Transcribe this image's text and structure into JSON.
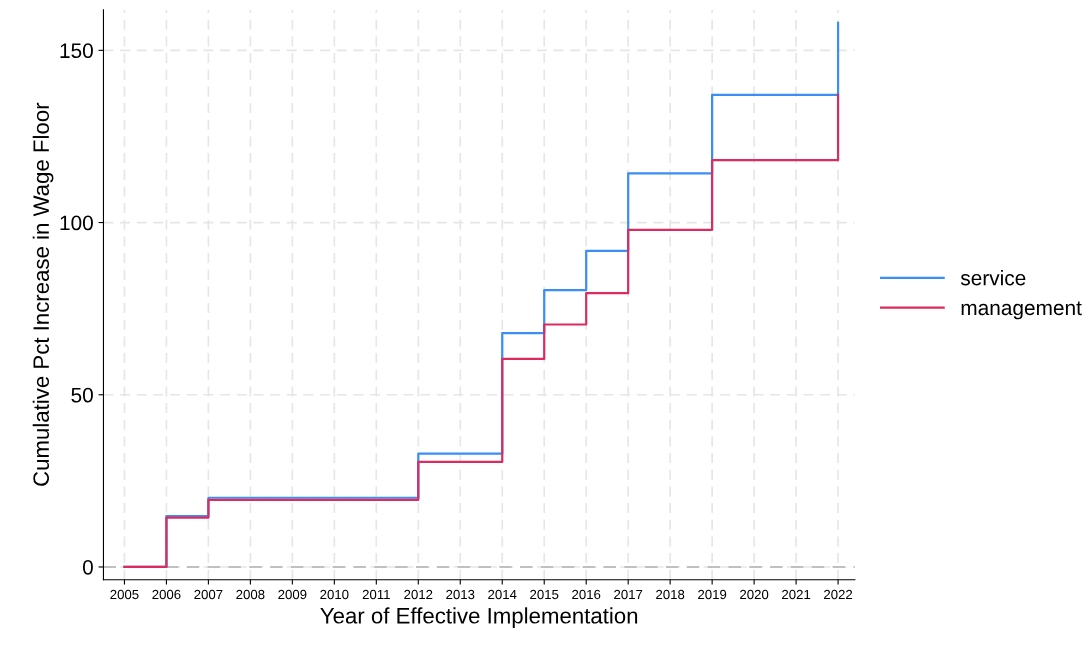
{
  "chart_data": {
    "type": "step",
    "xlabel": "Year of Effective Implementation",
    "ylabel": "Cumulative Pct Increase in Wage Floor",
    "x": [
      2005,
      2006,
      2007,
      2012,
      2014,
      2015,
      2016,
      2017,
      2019,
      2022
    ],
    "series": [
      {
        "name": "service",
        "color": "#3a8ef6",
        "values": [
          0,
          14.8,
          20.1,
          32.9,
          67.9,
          80.4,
          91.8,
          114.3,
          137.1,
          158
        ]
      },
      {
        "name": "management",
        "color": "#dc2b5e",
        "values": [
          0,
          14.3,
          19.5,
          30.5,
          60.4,
          70.4,
          79.5,
          97.9,
          118.1,
          137.1
        ]
      }
    ],
    "xlim": [
      2004.5,
      2022.4
    ],
    "xticks": [
      2005,
      2006,
      2007,
      2008,
      2009,
      2010,
      2011,
      2012,
      2013,
      2014,
      2015,
      2016,
      2017,
      2018,
      2019,
      2020,
      2021,
      2022
    ],
    "ylim": [
      -3.7,
      161.8
    ],
    "yticks": [
      0,
      50,
      100,
      150
    ],
    "ref_lines": [
      {
        "axis": "y",
        "value": 0,
        "color": "#c0c0c0",
        "line_style": "dashed"
      }
    ],
    "grid": true,
    "legend": "right",
    "line_style": "solid"
  }
}
